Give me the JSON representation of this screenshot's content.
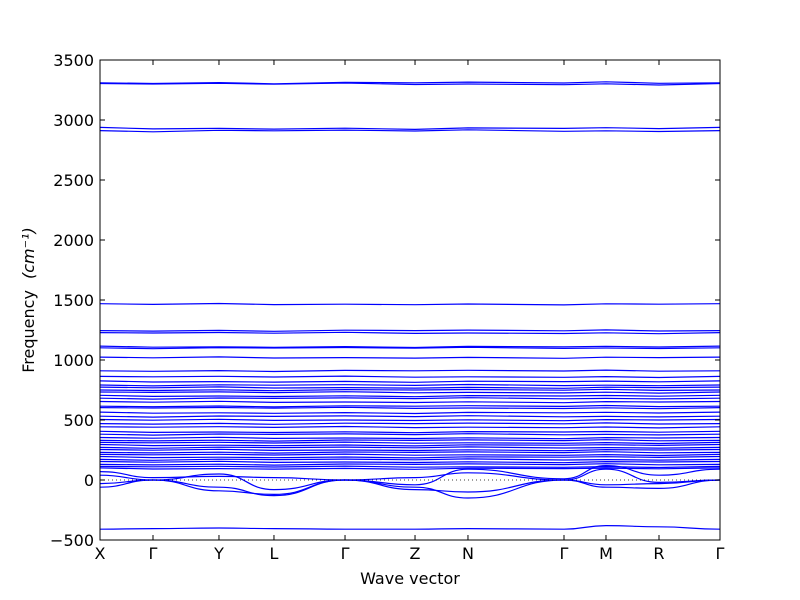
{
  "chart_data": {
    "type": "line",
    "title": "",
    "xlabel": "Wave vector",
    "ylabel": "Frequency",
    "ylabel_unit": "(cm⁻¹)",
    "ylim": [
      -500,
      3500
    ],
    "yticks": [
      -500,
      0,
      500,
      1000,
      1500,
      2000,
      2500,
      3000,
      3500
    ],
    "ytick_labels": [
      "−500",
      "0",
      "500",
      "1000",
      "1500",
      "2000",
      "2500",
      "3000",
      "3500"
    ],
    "high_symmetry_points": [
      {
        "label": "X",
        "x": 0.0
      },
      {
        "label": "Γ",
        "x": 0.0855
      },
      {
        "label": "Y",
        "x": 0.1919
      },
      {
        "label": "L",
        "x": 0.2806
      },
      {
        "label": "Γ",
        "x": 0.3952
      },
      {
        "label": "Z",
        "x": 0.5081
      },
      {
        "label": "N",
        "x": 0.5935
      },
      {
        "label": "Γ",
        "x": 0.7484
      },
      {
        "label": "M",
        "x": 0.8161
      },
      {
        "label": "R",
        "x": 0.9016
      },
      {
        "label": "Γ",
        "x": 1.0
      }
    ],
    "series_color": "#0000ff",
    "zero_line": true,
    "flat_bands": [
      3310,
      3300,
      2930,
      2910,
      1465,
      1245,
      1225,
      1110,
      1100,
      1020,
      910,
      860,
      820,
      790,
      770,
      750,
      730,
      700,
      680,
      650,
      615,
      600,
      560,
      530,
      500,
      470,
      440,
      400,
      380,
      350,
      330,
      310,
      290,
      270,
      250,
      230,
      210,
      190,
      170,
      150,
      130,
      110,
      95
    ],
    "low_bands": [
      {
        "points": [
          [
            0.0,
            -60
          ],
          [
            0.0855,
            0
          ],
          [
            0.1919,
            -90
          ],
          [
            0.2806,
            -120
          ],
          [
            0.3952,
            0
          ],
          [
            0.5081,
            -80
          ],
          [
            0.5935,
            -100
          ],
          [
            0.7484,
            0
          ],
          [
            0.8161,
            -40
          ],
          [
            0.9016,
            -30
          ],
          [
            1.0,
            0
          ]
        ]
      },
      {
        "points": [
          [
            0.0,
            -30
          ],
          [
            0.0855,
            0
          ],
          [
            0.1919,
            -60
          ],
          [
            0.2806,
            -130
          ],
          [
            0.3952,
            0
          ],
          [
            0.5081,
            -60
          ],
          [
            0.5935,
            -150
          ],
          [
            0.7484,
            0
          ],
          [
            0.8161,
            -60
          ],
          [
            0.9016,
            -70
          ],
          [
            1.0,
            0
          ]
        ]
      },
      {
        "points": [
          [
            0.0,
            40
          ],
          [
            0.0855,
            0
          ],
          [
            0.1919,
            50
          ],
          [
            0.2806,
            -80
          ],
          [
            0.3952,
            0
          ],
          [
            0.5081,
            20
          ],
          [
            0.5935,
            60
          ],
          [
            0.7484,
            0
          ],
          [
            0.8161,
            90
          ],
          [
            0.9016,
            -20
          ],
          [
            1.0,
            0
          ]
        ]
      },
      {
        "points": [
          [
            0.0,
            70
          ],
          [
            0.0855,
            20
          ],
          [
            0.1919,
            30
          ],
          [
            0.2806,
            20
          ],
          [
            0.3952,
            0
          ],
          [
            0.5081,
            -40
          ],
          [
            0.5935,
            90
          ],
          [
            0.7484,
            10
          ],
          [
            0.8161,
            120
          ],
          [
            0.9016,
            40
          ],
          [
            1.0,
            90
          ]
        ]
      },
      {
        "points": [
          [
            0.0,
            -410
          ],
          [
            0.0855,
            -405
          ],
          [
            0.1919,
            -400
          ],
          [
            0.2806,
            -405
          ],
          [
            0.3952,
            -410
          ],
          [
            0.5081,
            -410
          ],
          [
            0.5935,
            -405
          ],
          [
            0.7484,
            -410
          ],
          [
            0.8161,
            -380
          ],
          [
            0.9016,
            -390
          ],
          [
            1.0,
            -410
          ]
        ]
      }
    ]
  }
}
